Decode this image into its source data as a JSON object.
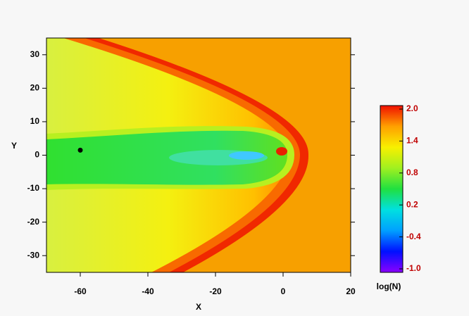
{
  "chart_data": {
    "type": "heatmap",
    "xlabel": "X",
    "ylabel": "Y",
    "xlim": [
      -70,
      20
    ],
    "ylim": [
      -35,
      35
    ],
    "xticks": [
      -60,
      -40,
      -20,
      0,
      20
    ],
    "yticks": [
      -30,
      -20,
      -10,
      0,
      10,
      20,
      30
    ],
    "points": [
      {
        "x": -60,
        "y": 1.5,
        "color": "#000000"
      }
    ],
    "colorbar": {
      "label": "log(N)",
      "lim": [
        -1.0,
        2.0
      ],
      "ticks": [
        {
          "value": -1.0,
          "label": "-1.0"
        },
        -0.4,
        0.2,
        0.8,
        1.4,
        {
          "value": 2.0,
          "label": "2.0"
        }
      ],
      "colors": [
        "#8a00ff",
        "#0010ff",
        "#00a0ff",
        "#00e0e0",
        "#20e040",
        "#a0f020",
        "#f8f000",
        "#ffa000",
        "#f01000"
      ],
      "label_color": "#c00000"
    }
  }
}
